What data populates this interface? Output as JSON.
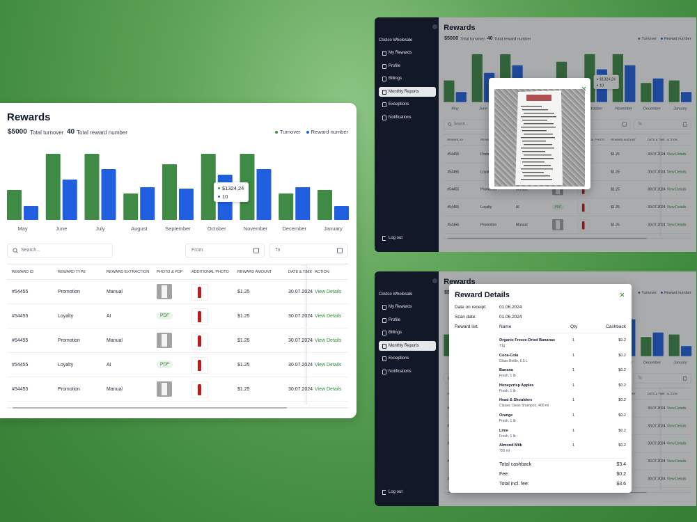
{
  "sidebar": {
    "company": "Costco Wholesale",
    "items": [
      "My Rewards",
      "Profile",
      "Billings",
      "Monthly Reports",
      "Exceptions",
      "Notifications"
    ],
    "active": 3,
    "logout": "Log out"
  },
  "rewards": {
    "title": "Rewards",
    "turnover": "$5000",
    "turnover_label": "Total turnover",
    "count": "40",
    "count_label": "Total reward number",
    "tooltip": {
      "amount": "$1324,24",
      "count": "10"
    },
    "search_placeholder": "Search...",
    "from": "From",
    "to": "To",
    "table": {
      "columns": [
        "REWARD ID",
        "REWARD TYPE",
        "REWARD EXTRACTION",
        "PHOTO & PDF",
        "ADDITIONAL PHOTO",
        "REWARD AMOUNT",
        "DATE & TIME",
        "ACTION"
      ],
      "rows": [
        {
          "id": "#54455",
          "type": "Promotion",
          "extraction": "Manual",
          "amount": "$1.25",
          "date": "30.07.2024",
          "action": "View Details"
        },
        {
          "id": "#54455",
          "type": "Loyalty",
          "extraction": "AI",
          "photo": "PDF",
          "amount": "$1.25",
          "date": "30.07.2024",
          "action": "View Details"
        },
        {
          "id": "#54455",
          "type": "Promotion",
          "extraction": "Manual",
          "amount": "$1.25",
          "date": "30.07.2024",
          "action": "View Details"
        },
        {
          "id": "#54455",
          "type": "Loyalty",
          "extraction": "AI",
          "photo": "PDF",
          "amount": "$1.25",
          "date": "30.07.2024",
          "action": "View Details"
        },
        {
          "id": "#54455",
          "type": "Promotion",
          "extraction": "Manual",
          "amount": "$1.25",
          "date": "30.07.2024",
          "action": "View Details"
        }
      ]
    }
  },
  "chart_data": {
    "type": "bar",
    "categories": [
      "May",
      "June",
      "July",
      "August",
      "September",
      "October",
      "November",
      "December",
      "January"
    ],
    "series": [
      {
        "name": "Turnover",
        "color": "#3f8a44",
        "values": [
          43,
          95,
          95,
          38,
          80,
          95,
          95,
          38,
          43
        ]
      },
      {
        "name": "Reward number",
        "color": "#1f5fe0",
        "values": [
          20,
          58,
          73,
          47,
          45,
          65,
          73,
          47,
          20
        ]
      }
    ],
    "ylim": [
      0,
      100
    ],
    "legend": "top-right"
  },
  "details": {
    "title": "Reward Details",
    "date_label": "Date on receipt:",
    "date": "01.06.2024",
    "scan_label": "Scan date:",
    "scan": "01.06.2024",
    "list_label": "Reward list:",
    "columns": [
      "Name",
      "Qty",
      "Cashback"
    ],
    "items": [
      {
        "name": "Organic Freeze-Dried Bananas",
        "desc": "71g",
        "qty": "1",
        "cashback": "$0.2"
      },
      {
        "name": "Coca-Cola",
        "desc": "Glass Bottle, 0.5 L",
        "qty": "1",
        "cashback": "$0.2"
      },
      {
        "name": "Banana",
        "desc": "Fresh, 1 lb",
        "qty": "1",
        "cashback": "$0.2"
      },
      {
        "name": "Honeycrisp Apples",
        "desc": "Fresh, 1 lb",
        "qty": "1",
        "cashback": "$0.2"
      },
      {
        "name": "Head & Shoulders",
        "desc": "Classic Clean Shampoo, 400 ml",
        "qty": "1",
        "cashback": "$0.2"
      },
      {
        "name": "Orange",
        "desc": "Fresh, 1 lb",
        "qty": "1",
        "cashback": "$0.2"
      },
      {
        "name": "Lime",
        "desc": "Fresh, 1 lb",
        "qty": "1",
        "cashback": "$0.2"
      },
      {
        "name": "Almond Milk",
        "desc": "750 ml",
        "qty": "1",
        "cashback": "$0.2"
      }
    ],
    "totals": [
      {
        "label": "Total cashback",
        "value": "$3.4"
      },
      {
        "label": "Fee:",
        "value": "$0.2"
      },
      {
        "label": "Total incl. fee:",
        "value": "$3.6"
      }
    ]
  }
}
